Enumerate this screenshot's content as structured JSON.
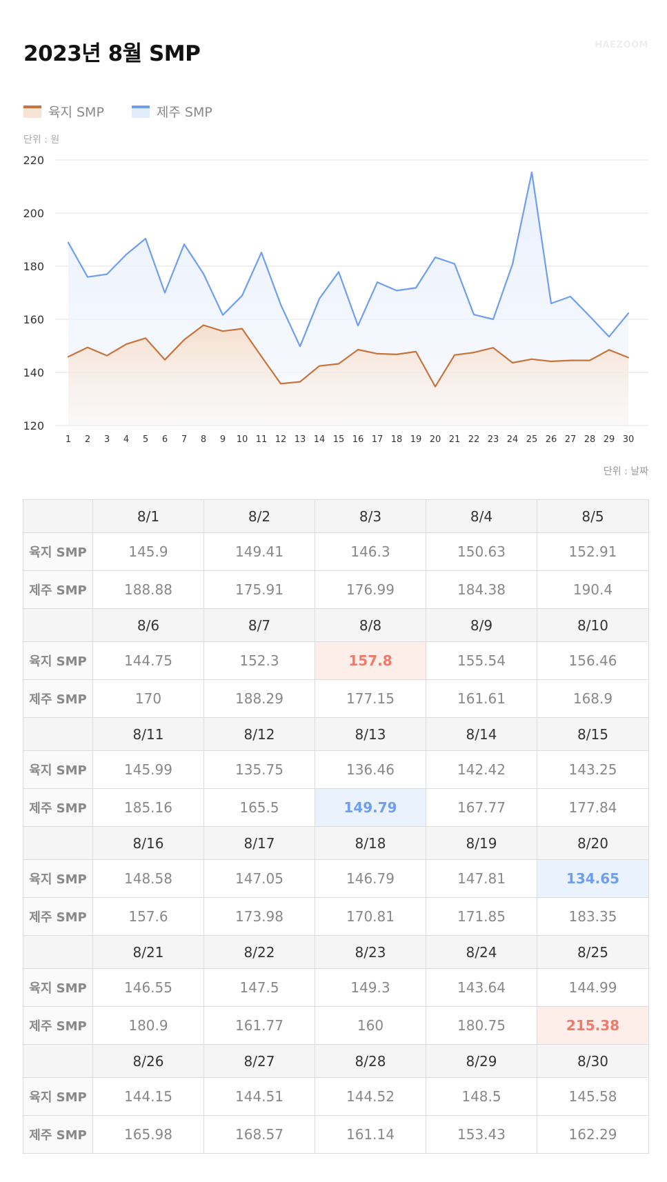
{
  "header": {
    "title": "2023년 8월 SMP",
    "brand": "HAEZOOM"
  },
  "legend": {
    "land": "육지 SMP",
    "jeju": "제주 SMP"
  },
  "units": {
    "y": "단위 : 원",
    "x": "단위 : 날짜"
  },
  "colors": {
    "land": "#c8733b",
    "jeju": "#6f9ef0",
    "highlight_max": "#f07a6a",
    "highlight_min": "#6f9ef0"
  },
  "chart_data": {
    "type": "area",
    "x": [
      "1",
      "2",
      "3",
      "4",
      "5",
      "6",
      "7",
      "8",
      "9",
      "10",
      "11",
      "12",
      "13",
      "14",
      "15",
      "16",
      "17",
      "18",
      "19",
      "20",
      "21",
      "22",
      "23",
      "24",
      "25",
      "26",
      "27",
      "28",
      "29",
      "30"
    ],
    "yticks": [
      120,
      140,
      160,
      180,
      200,
      220
    ],
    "ylim": [
      120,
      220
    ],
    "grid": true,
    "legend_position": "top-left",
    "series": [
      {
        "name": "육지 SMP",
        "key": "land",
        "values": [
          145.9,
          149.41,
          146.3,
          150.63,
          152.91,
          144.75,
          152.3,
          157.8,
          155.54,
          156.46,
          145.99,
          135.75,
          136.46,
          142.42,
          143.25,
          148.58,
          147.05,
          146.79,
          147.81,
          134.65,
          146.55,
          147.5,
          149.3,
          143.64,
          144.99,
          144.15,
          144.51,
          144.52,
          148.5,
          145.58
        ]
      },
      {
        "name": "제주 SMP",
        "key": "jeju",
        "values": [
          188.88,
          175.91,
          176.99,
          184.38,
          190.4,
          170,
          188.29,
          177.15,
          161.61,
          168.9,
          185.16,
          165.5,
          149.79,
          167.77,
          177.84,
          157.6,
          173.98,
          170.81,
          171.85,
          183.35,
          180.9,
          161.77,
          160,
          180.75,
          215.38,
          165.98,
          168.57,
          161.14,
          153.43,
          162.29
        ]
      }
    ]
  },
  "table": {
    "row_labels": {
      "land": "육지 SMP",
      "jeju": "제주 SMP"
    },
    "blocks": [
      {
        "dates": [
          "8/1",
          "8/2",
          "8/3",
          "8/4",
          "8/5"
        ],
        "land": [
          "145.9",
          "149.41",
          "146.3",
          "150.63",
          "152.91"
        ],
        "jeju": [
          "188.88",
          "175.91",
          "176.99",
          "184.38",
          "190.4"
        ]
      },
      {
        "dates": [
          "8/6",
          "8/7",
          "8/8",
          "8/9",
          "8/10"
        ],
        "land": [
          "144.75",
          "152.3",
          "157.8",
          "155.54",
          "156.46"
        ],
        "jeju": [
          "170",
          "188.29",
          "177.15",
          "161.61",
          "168.9"
        ]
      },
      {
        "dates": [
          "8/11",
          "8/12",
          "8/13",
          "8/14",
          "8/15"
        ],
        "land": [
          "145.99",
          "135.75",
          "136.46",
          "142.42",
          "143.25"
        ],
        "jeju": [
          "185.16",
          "165.5",
          "149.79",
          "167.77",
          "177.84"
        ]
      },
      {
        "dates": [
          "8/16",
          "8/17",
          "8/18",
          "8/19",
          "8/20"
        ],
        "land": [
          "148.58",
          "147.05",
          "146.79",
          "147.81",
          "134.65"
        ],
        "jeju": [
          "157.6",
          "173.98",
          "170.81",
          "171.85",
          "183.35"
        ]
      },
      {
        "dates": [
          "8/21",
          "8/22",
          "8/23",
          "8/24",
          "8/25"
        ],
        "land": [
          "146.55",
          "147.5",
          "149.3",
          "143.64",
          "144.99"
        ],
        "jeju": [
          "180.9",
          "161.77",
          "160",
          "180.75",
          "215.38"
        ]
      },
      {
        "dates": [
          "8/26",
          "8/27",
          "8/28",
          "8/29",
          "8/30"
        ],
        "land": [
          "144.15",
          "144.51",
          "144.52",
          "148.5",
          "145.58"
        ],
        "jeju": [
          "165.98",
          "168.57",
          "161.14",
          "153.43",
          "162.29"
        ]
      }
    ],
    "highlights": [
      {
        "block": 1,
        "row": "land",
        "col": 2,
        "kind": "max"
      },
      {
        "block": 2,
        "row": "jeju",
        "col": 2,
        "kind": "min"
      },
      {
        "block": 3,
        "row": "land",
        "col": 4,
        "kind": "min"
      },
      {
        "block": 4,
        "row": "jeju",
        "col": 4,
        "kind": "max"
      }
    ]
  }
}
